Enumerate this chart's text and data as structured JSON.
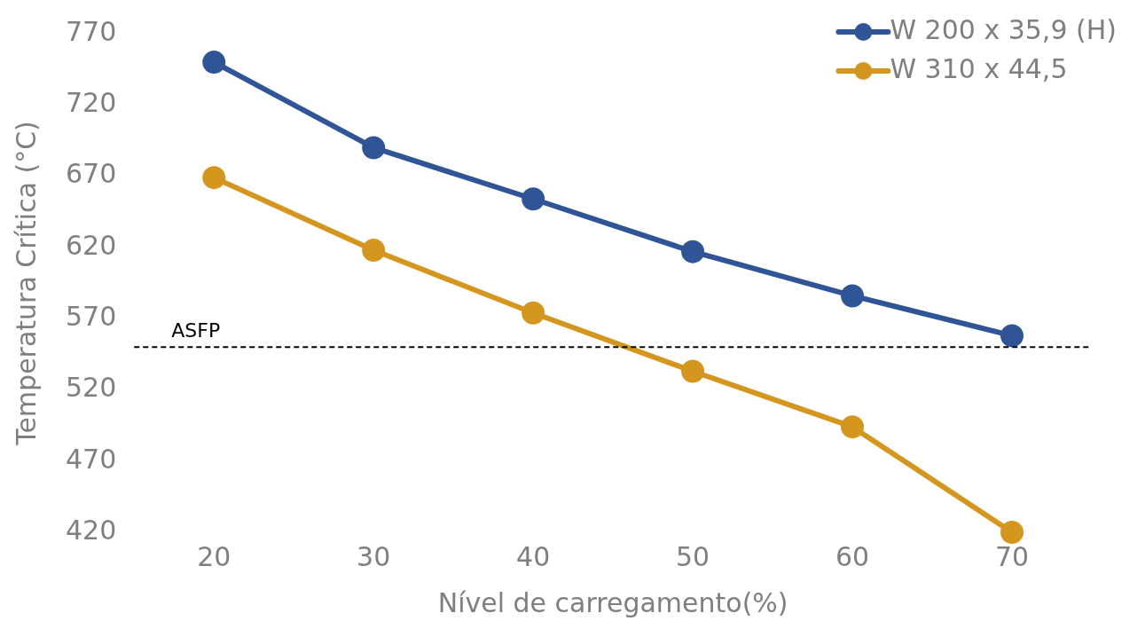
{
  "chart_data": {
    "type": "line",
    "xlabel": "Nível de carregamento(%)",
    "ylabel": "Temperatura Crítica (°C)",
    "categories": [
      "20",
      "30",
      "40",
      "50",
      "60",
      "70"
    ],
    "series": [
      {
        "name": "W 200 x 35,9 (H)",
        "color": "#2f5597",
        "values": [
          750,
          690,
          654,
          617,
          586,
          558
        ]
      },
      {
        "name": "W 310 x 44,5",
        "color": "#d4961e",
        "values": [
          669,
          618,
          574,
          533,
          494,
          420
        ]
      }
    ],
    "ylim": [
      420,
      770
    ],
    "yticks": [
      420,
      470,
      520,
      570,
      620,
      670,
      720,
      770
    ],
    "ref_lines": [
      {
        "axis": "y",
        "value": 550,
        "label": "ASFP",
        "color": "#000000",
        "line_style": "dashed"
      }
    ],
    "grid": false,
    "legend": "top right",
    "marker": "circle",
    "line_style": "solid"
  }
}
